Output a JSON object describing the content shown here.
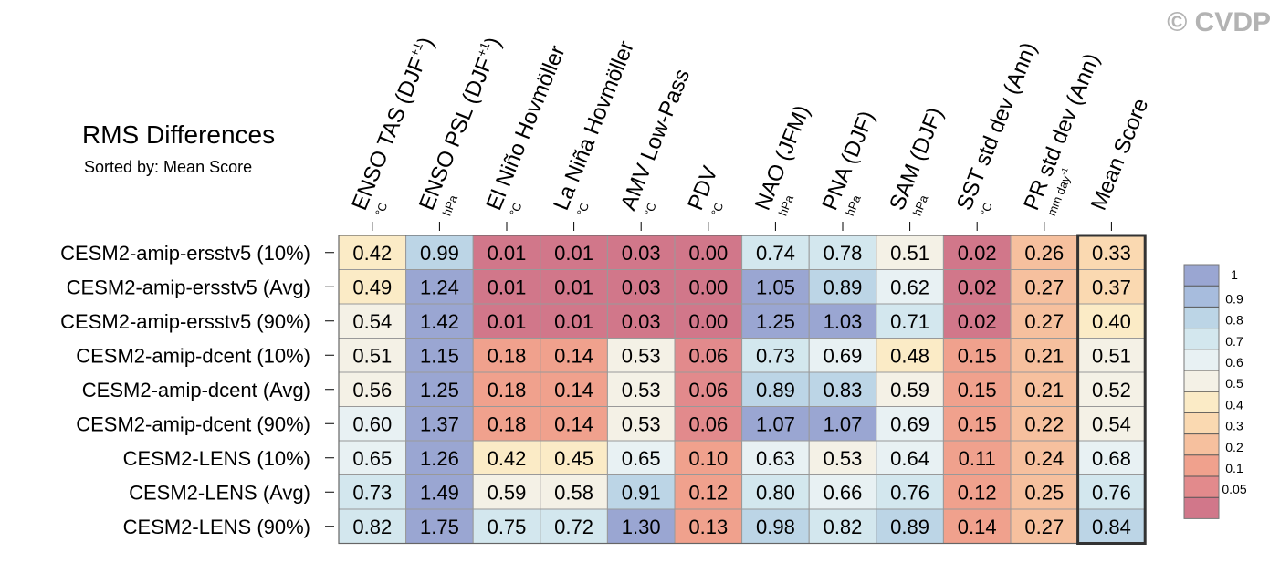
{
  "watermark": "© CVDP",
  "chart_data": {
    "type": "heatmap",
    "title": "RMS Differences",
    "subtitle": "Sorted by: Mean Score",
    "columns": [
      {
        "name": "ENSO TAS (DJF+1)",
        "units": "°C"
      },
      {
        "name": "ENSO PSL (DJF+1)",
        "units": "hPa"
      },
      {
        "name": "El Niño Hovmöller",
        "units": "°C"
      },
      {
        "name": "La Niña Hovmöller",
        "units": "°C"
      },
      {
        "name": "AMV Low-Pass",
        "units": "°C"
      },
      {
        "name": "PDV",
        "units": "°C"
      },
      {
        "name": "NAO (JFM)",
        "units": "hPa"
      },
      {
        "name": "PNA (DJF)",
        "units": "hPa"
      },
      {
        "name": "SAM (DJF)",
        "units": "hPa"
      },
      {
        "name": "SST std dev (Ann)",
        "units": "°C"
      },
      {
        "name": "PR std dev (Ann)",
        "units": "mm day-1"
      },
      {
        "name": "Mean Score",
        "units": ""
      }
    ],
    "rows": [
      "CESM2-amip-ersstv5 (10%)",
      "CESM2-amip-ersstv5 (Avg)",
      "CESM2-amip-ersstv5 (90%)",
      "CESM2-amip-dcent (10%)",
      "CESM2-amip-dcent (Avg)",
      "CESM2-amip-dcent (90%)",
      "CESM2-LENS (10%)",
      "CESM2-LENS (Avg)",
      "CESM2-LENS (90%)"
    ],
    "values": [
      [
        "0.42",
        "0.99",
        "0.01",
        "0.01",
        "0.03",
        "0.00",
        "0.74",
        "0.78",
        "0.51",
        "0.02",
        "0.26",
        "0.33"
      ],
      [
        "0.49",
        "1.24",
        "0.01",
        "0.01",
        "0.03",
        "0.00",
        "1.05",
        "0.89",
        "0.62",
        "0.02",
        "0.27",
        "0.37"
      ],
      [
        "0.54",
        "1.42",
        "0.01",
        "0.01",
        "0.03",
        "0.00",
        "1.25",
        "1.03",
        "0.71",
        "0.02",
        "0.27",
        "0.40"
      ],
      [
        "0.51",
        "1.15",
        "0.18",
        "0.14",
        "0.53",
        "0.06",
        "0.73",
        "0.69",
        "0.48",
        "0.15",
        "0.21",
        "0.51"
      ],
      [
        "0.56",
        "1.25",
        "0.18",
        "0.14",
        "0.53",
        "0.06",
        "0.89",
        "0.83",
        "0.59",
        "0.15",
        "0.21",
        "0.52"
      ],
      [
        "0.60",
        "1.37",
        "0.18",
        "0.14",
        "0.53",
        "0.06",
        "1.07",
        "1.07",
        "0.69",
        "0.15",
        "0.22",
        "0.54"
      ],
      [
        "0.65",
        "1.26",
        "0.42",
        "0.45",
        "0.65",
        "0.10",
        "0.63",
        "0.53",
        "0.64",
        "0.11",
        "0.24",
        "0.68"
      ],
      [
        "0.73",
        "1.49",
        "0.59",
        "0.58",
        "0.91",
        "0.12",
        "0.80",
        "0.66",
        "0.76",
        "0.12",
        "0.25",
        "0.76"
      ],
      [
        "0.82",
        "1.75",
        "0.75",
        "0.72",
        "1.30",
        "0.13",
        "0.98",
        "0.82",
        "0.89",
        "0.14",
        "0.27",
        "0.84"
      ]
    ],
    "legend": {
      "placement": "right",
      "levels": [
        "1",
        "0.9",
        "0.8",
        "0.7",
        "0.6",
        "0.5",
        "0.4",
        "0.3",
        "0.2",
        "0.1",
        "0.05"
      ],
      "colors_top_to_bottom": [
        "#9aa6d2",
        "#a7bcdd",
        "#bcd5e6",
        "#d3e7ee",
        "#e8f1f3",
        "#f4f1e6",
        "#fbebc6",
        "#fad9b1",
        "#f6c09e",
        "#f0a18d",
        "#e28a8c",
        "#d1778a"
      ]
    },
    "cell_colors": [
      [
        "#fbebc6",
        "#bcd5e6",
        "#d1778a",
        "#d1778a",
        "#d1778a",
        "#d1778a",
        "#d3e7ee",
        "#d3e7ee",
        "#f4f1e6",
        "#d1778a",
        "#f6c09e",
        "#fad9b1"
      ],
      [
        "#fbebc6",
        "#9aa6d2",
        "#d1778a",
        "#d1778a",
        "#d1778a",
        "#d1778a",
        "#9aa6d2",
        "#bcd5e6",
        "#e8f1f3",
        "#d1778a",
        "#f6c09e",
        "#fad9b1"
      ],
      [
        "#f4f1e6",
        "#9aa6d2",
        "#d1778a",
        "#d1778a",
        "#d1778a",
        "#d1778a",
        "#9aa6d2",
        "#9aa6d2",
        "#d3e7ee",
        "#d1778a",
        "#f6c09e",
        "#fbebc6"
      ],
      [
        "#f4f1e6",
        "#9aa6d2",
        "#f0a18d",
        "#f0a18d",
        "#f4f1e6",
        "#e28a8c",
        "#d3e7ee",
        "#e8f1f3",
        "#fbebc6",
        "#f0a18d",
        "#f6c09e",
        "#f4f1e6"
      ],
      [
        "#f4f1e6",
        "#9aa6d2",
        "#f0a18d",
        "#f0a18d",
        "#f4f1e6",
        "#e28a8c",
        "#bcd5e6",
        "#bcd5e6",
        "#f4f1e6",
        "#f0a18d",
        "#f6c09e",
        "#f4f1e6"
      ],
      [
        "#e8f1f3",
        "#9aa6d2",
        "#f0a18d",
        "#f0a18d",
        "#f4f1e6",
        "#e28a8c",
        "#9aa6d2",
        "#9aa6d2",
        "#e8f1f3",
        "#f0a18d",
        "#f6c09e",
        "#f4f1e6"
      ],
      [
        "#e8f1f3",
        "#9aa6d2",
        "#fbebc6",
        "#fbebc6",
        "#e8f1f3",
        "#f0a18d",
        "#e8f1f3",
        "#f4f1e6",
        "#e8f1f3",
        "#f0a18d",
        "#f6c09e",
        "#e8f1f3"
      ],
      [
        "#d3e7ee",
        "#9aa6d2",
        "#f4f1e6",
        "#f4f1e6",
        "#bcd5e6",
        "#f0a18d",
        "#d3e7ee",
        "#e8f1f3",
        "#d3e7ee",
        "#f0a18d",
        "#f6c09e",
        "#d3e7ee"
      ],
      [
        "#d3e7ee",
        "#9aa6d2",
        "#d3e7ee",
        "#d3e7ee",
        "#9aa6d2",
        "#f0a18d",
        "#bcd5e6",
        "#d3e7ee",
        "#bcd5e6",
        "#f0a18d",
        "#f6c09e",
        "#bcd5e6"
      ]
    ]
  }
}
